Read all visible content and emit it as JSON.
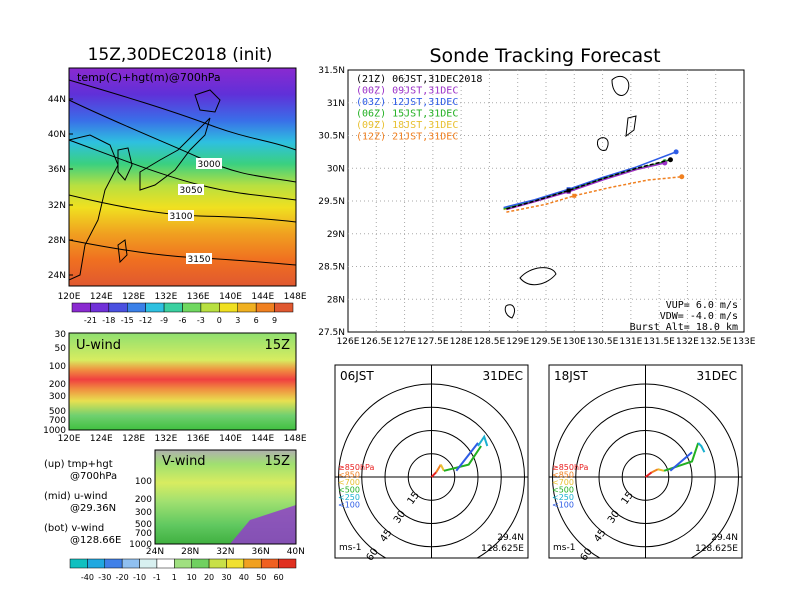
{
  "left_panel": {
    "title": "15Z,30DEC2018 (init)",
    "map_label": "temp(C)+hgt(m)@700hPa",
    "lat_ticks": [
      "44N",
      "40N",
      "36N",
      "32N",
      "28N",
      "24N"
    ],
    "lon_ticks": [
      "120E",
      "124E",
      "128E",
      "132E",
      "136E",
      "140E",
      "144E",
      "148E"
    ],
    "contour_labels": [
      "3000",
      "3050",
      "3100",
      "3150"
    ],
    "colorbar_labels": [
      "-21",
      "-18",
      "-15",
      "-12",
      "-9",
      "-6",
      "-3",
      "0",
      "3",
      "6",
      "9"
    ]
  },
  "uwind_panel": {
    "label": "U-wind",
    "time": "15Z",
    "p_ticks": [
      "30",
      "50",
      "100",
      "200",
      "300",
      "500",
      "700",
      "1000"
    ],
    "lon_ticks": [
      "120E",
      "124E",
      "128E",
      "132E",
      "136E",
      "140E",
      "144E",
      "148E"
    ]
  },
  "vwind_panel": {
    "label": "V-wind",
    "time": "15Z",
    "p_ticks": [
      "100",
      "200",
      "300",
      "500",
      "700",
      "1000"
    ],
    "lat_ticks": [
      "24N",
      "28N",
      "32N",
      "36N",
      "40N"
    ]
  },
  "notes": {
    "up1": "(up) tmp+hgt",
    "up2": "@700hPa",
    "mid1": "(mid) u-wind",
    "mid2": "@29.36N",
    "bot1": "(bot) v-wind",
    "bot2": "@128.66E"
  },
  "bottom_colorbar_labels": [
    "-40",
    "-30",
    "-20",
    "-10",
    "-1",
    "1",
    "10",
    "20",
    "30",
    "40",
    "50",
    "60"
  ],
  "main_title": "Sonde Tracking Forecast",
  "track_panel": {
    "legend": [
      {
        "label": "(21Z)  06JST,31DEC2018",
        "color": "#000000"
      },
      {
        "label": "(00Z)  09JST,31DEC",
        "color": "#9b30c8"
      },
      {
        "label": "(03Z)  12JST,31DEC",
        "color": "#2e5ce6"
      },
      {
        "label": "(06Z)  15JST,31DEC",
        "color": "#22b022"
      },
      {
        "label": "(09Z)  18JST,31DEC",
        "color": "#e8c030"
      },
      {
        "label": "(12Z)  21JST,31DEC",
        "color": "#f08020"
      }
    ],
    "lat_ticks": [
      "31.5N",
      "31N",
      "30.5N",
      "30N",
      "29.5N",
      "29N",
      "28.5N",
      "28N",
      "27.5N"
    ],
    "lon_ticks": [
      "126E",
      "126.5E",
      "127E",
      "127.5E",
      "128E",
      "128.5E",
      "129E",
      "129.5E",
      "130E",
      "130.5E",
      "131E",
      "131.5E",
      "132E",
      "132.5E",
      "133E"
    ],
    "params": {
      "vup": "VUP=  6.0  m/s",
      "vdw": "VDW=  -4.0  m/s",
      "burst": "Burst Alt=  18.0  km"
    }
  },
  "hodo1": {
    "time": "06JST",
    "date": "31DEC",
    "ring_labels": [
      "15",
      "30",
      "45",
      "60"
    ],
    "levels": [
      {
        "label": "≥850hPa",
        "color": "#e82020"
      },
      {
        "label": "<850",
        "color": "#f08020"
      },
      {
        "label": "<700",
        "color": "#e8c030"
      },
      {
        "label": "<500",
        "color": "#22b022"
      },
      {
        "label": "<250",
        "color": "#1ab0d0"
      },
      {
        "label": "<100",
        "color": "#2e5ce6"
      }
    ],
    "unit": "ms-1",
    "lat": "29.4N",
    "lon": "128.625E"
  },
  "hodo2": {
    "time": "18JST",
    "date": "31DEC",
    "ring_labels": [
      "15",
      "30",
      "45",
      "60"
    ],
    "levels": [
      {
        "label": "≥850hPa",
        "color": "#e82020"
      },
      {
        "label": "<850",
        "color": "#f08020"
      },
      {
        "label": "<700",
        "color": "#e8c030"
      },
      {
        "label": "<500",
        "color": "#22b022"
      },
      {
        "label": "<250",
        "color": "#1ab0d0"
      },
      {
        "label": "<100",
        "color": "#2e5ce6"
      }
    ],
    "unit": "ms-1",
    "lat": "29.4N",
    "lon": "128.625E"
  },
  "chart_data": [
    {
      "type": "line",
      "title": "Sonde Tracking Forecast",
      "xlim": [
        126,
        133
      ],
      "ylim": [
        27.5,
        31.5
      ],
      "series": [
        {
          "name": "(21Z) 06JST,31DEC2018",
          "x": [
            128.8,
            129.3,
            129.9,
            130.5,
            131.1,
            131.7
          ],
          "y": [
            29.38,
            29.5,
            29.66,
            29.84,
            30.0,
            30.13
          ]
        },
        {
          "name": "(00Z) 09JST,31DEC",
          "x": [
            128.8,
            129.3,
            129.9,
            130.5,
            131.1,
            131.6
          ],
          "y": [
            29.37,
            29.49,
            29.64,
            29.82,
            29.98,
            30.08
          ]
        },
        {
          "name": "(03Z) 12JST,31DEC",
          "x": [
            128.75,
            129.3,
            129.9,
            130.5,
            131.1,
            131.8
          ],
          "y": [
            29.4,
            29.52,
            29.68,
            29.86,
            30.02,
            30.25
          ]
        },
        {
          "name": "(06Z) 15JST,31DEC",
          "x": [
            128.75,
            129.3,
            129.9,
            130.5,
            131.1,
            131.6
          ],
          "y": [
            29.38,
            29.5,
            29.66,
            29.84,
            29.99,
            30.1
          ]
        },
        {
          "name": "(09Z) 18JST,31DEC",
          "x": [
            128.75,
            129.3,
            129.9,
            130.5,
            131.1,
            131.6
          ],
          "y": [
            29.37,
            29.49,
            29.65,
            29.83,
            29.98,
            30.09
          ]
        },
        {
          "name": "(12Z) 21JST,31DEC",
          "x": [
            128.8,
            129.5,
            130.0,
            130.6,
            131.3,
            131.9
          ],
          "y": [
            29.33,
            29.45,
            29.58,
            29.7,
            29.82,
            29.87
          ]
        }
      ]
    },
    {
      "type": "line",
      "title": "06JST 31DEC",
      "xlabel": "ms-1",
      "series": [
        {
          "name": "≥850hPa",
          "u": [
            0,
            3
          ],
          "v": [
            0,
            3
          ]
        },
        {
          "name": "<850",
          "u": [
            3,
            6
          ],
          "v": [
            3,
            8
          ]
        },
        {
          "name": "<700",
          "u": [
            6,
            8
          ],
          "v": [
            8,
            4
          ]
        },
        {
          "name": "<500",
          "u": [
            8,
            24,
            32
          ],
          "v": [
            4,
            8,
            20
          ]
        },
        {
          "name": "<100",
          "u": [
            16,
            30
          ],
          "v": [
            4,
            22
          ]
        },
        {
          "name": "<250",
          "u": [
            30,
            34,
            36
          ],
          "v": [
            20,
            26,
            20
          ]
        }
      ]
    },
    {
      "type": "line",
      "title": "18JST 31DEC",
      "xlabel": "ms-1",
      "series": [
        {
          "name": "≥850hPa",
          "u": [
            0,
            4
          ],
          "v": [
            0,
            3
          ]
        },
        {
          "name": "<850",
          "u": [
            4,
            8
          ],
          "v": [
            3,
            5
          ]
        },
        {
          "name": "<700",
          "u": [
            8,
            12
          ],
          "v": [
            5,
            4
          ]
        },
        {
          "name": "<500",
          "u": [
            12,
            30,
            34
          ],
          "v": [
            4,
            10,
            22
          ]
        },
        {
          "name": "<100",
          "u": [
            16,
            30
          ],
          "v": [
            4,
            16
          ]
        },
        {
          "name": "<250",
          "u": [
            34,
            36,
            38
          ],
          "v": [
            22,
            20,
            16
          ]
        }
      ]
    }
  ]
}
